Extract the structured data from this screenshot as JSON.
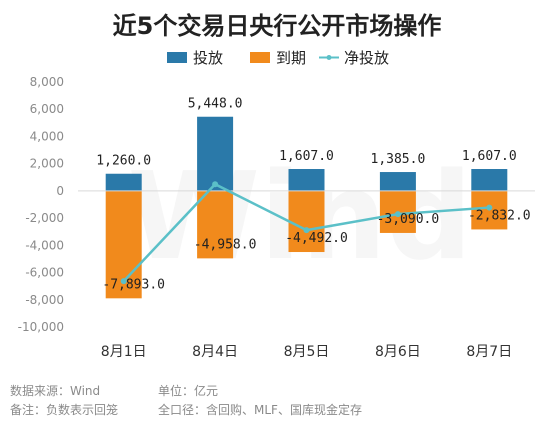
{
  "chart_data": {
    "type": "bar",
    "title": "近5个交易日央行公开市场操作",
    "categories": [
      "8月1日",
      "8月4日",
      "8月5日",
      "8月6日",
      "8月7日"
    ],
    "series": [
      {
        "name": "投放",
        "type": "bar",
        "color": "#2A79A9",
        "values": [
          1260.0,
          5448.0,
          1607.0,
          1385.0,
          1607.0
        ]
      },
      {
        "name": "到期",
        "type": "bar",
        "color": "#F18A1C",
        "values": [
          -7893.0,
          -4958.0,
          -4492.0,
          -3090.0,
          -2832.0
        ]
      },
      {
        "name": "净投放",
        "type": "line",
        "color": "#5BC0C8",
        "values": [
          -6633.0,
          490.0,
          -2885.0,
          -1705.0,
          -1225.0
        ]
      }
    ],
    "data_labels": {
      "top": [
        "1,260.0",
        "5,448.0",
        "1,607.0",
        "1,385.0",
        "1,607.0"
      ],
      "bottom": [
        "-7,893.0",
        "-4,958.0",
        "-4,492.0",
        "-3,090.0",
        "-2,832.0"
      ]
    },
    "y_ticks": [
      8000,
      6000,
      4000,
      2000,
      0,
      -2000,
      -4000,
      -6000,
      -8000,
      -10000
    ],
    "y_tick_labels": [
      "8,000",
      "6,000",
      "4,000",
      "2,000",
      "0",
      "-2,000",
      "-4,000",
      "-6,000",
      "-8,000",
      "-10,000"
    ],
    "ylim": [
      -10000,
      8000
    ],
    "legend_position": "top-center",
    "grid": false,
    "xlabel": "",
    "ylabel": ""
  },
  "legend": {
    "items": [
      "投放",
      "到期",
      "净投放"
    ]
  },
  "watermark": "Wind",
  "footer": {
    "source": "数据来源：Wind",
    "unit": "单位：亿元",
    "note": "备注：负数表示回笼",
    "scope": "全口径：含回购、MLF、国库现金定存"
  }
}
